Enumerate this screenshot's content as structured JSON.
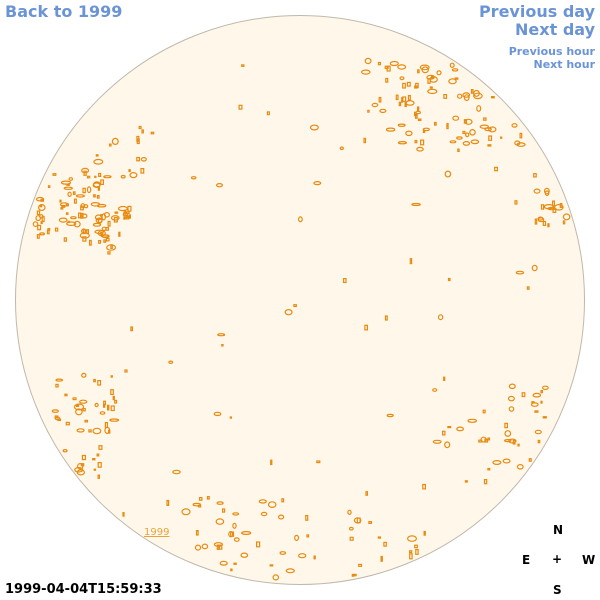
{
  "nav": {
    "back_label": "Back to 1999",
    "previous_day_label": "Previous day",
    "next_day_label": "Next day",
    "previous_hour_label": "Previous hour",
    "next_hour_label": "Next hour"
  },
  "image": {
    "year_link_label": "1999",
    "timestamp": "1999-04-04T15:59:33"
  },
  "compass": {
    "north": "N",
    "east": "E",
    "center": "+",
    "west": "W",
    "south": "S"
  },
  "colors": {
    "link": "#6b94d6",
    "disk_fill": "#fff8ea",
    "disk_stroke": "#bfb8ab",
    "feature": "#e88a10"
  }
}
